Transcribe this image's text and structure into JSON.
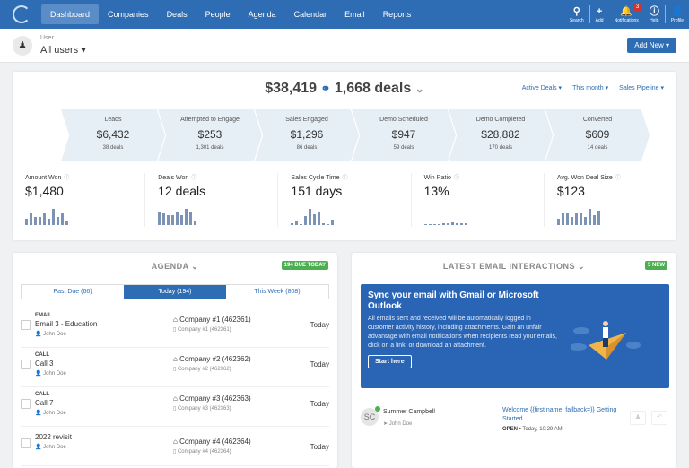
{
  "nav": {
    "items": [
      "Dashboard",
      "Companies",
      "Deals",
      "People",
      "Agenda",
      "Calendar",
      "Email",
      "Reports"
    ],
    "active": "Dashboard",
    "right": [
      {
        "label": "Search",
        "icon": "search-icon"
      },
      {
        "label": "Add",
        "icon": "plus-icon"
      },
      {
        "label": "Notifications",
        "icon": "bell-icon",
        "badge": "3"
      },
      {
        "label": "Help",
        "icon": "info-icon"
      },
      {
        "label": "Profile",
        "icon": "user-icon"
      }
    ]
  },
  "user": {
    "label": "User",
    "value": "All users ▾"
  },
  "add_new": "Add New ▾",
  "summary": {
    "amount": "$38,419",
    "deals": "1,668 deals",
    "filters": [
      "Active Deals ▾",
      "This month ▾",
      "Sales Pipeline ▾"
    ]
  },
  "funnel": [
    {
      "name": "Leads",
      "value": "$6,432",
      "deals": "38 deals"
    },
    {
      "name": "Attempted to Engage",
      "value": "$253",
      "deals": "1,301 deals"
    },
    {
      "name": "Sales Engaged",
      "value": "$1,296",
      "deals": "86 deals"
    },
    {
      "name": "Demo Scheduled",
      "value": "$947",
      "deals": "59 deals"
    },
    {
      "name": "Demo Completed",
      "value": "$28,882",
      "deals": "170 deals"
    },
    {
      "name": "Converted",
      "value": "$609",
      "deals": "14 deals"
    }
  ],
  "metrics": [
    {
      "name": "Amount Won",
      "value": "$1,480",
      "spark": [
        4,
        7,
        5,
        5,
        7,
        4,
        10,
        5,
        7,
        2
      ]
    },
    {
      "name": "Deals Won",
      "value": "12 deals",
      "spark": [
        8,
        7,
        6,
        6,
        8,
        6,
        10,
        8,
        2
      ]
    },
    {
      "name": "Sales Cycle Time",
      "value": "151 days",
      "spark": [
        1,
        2,
        0,
        5,
        9,
        6,
        7,
        1,
        0,
        3
      ]
    },
    {
      "name": "Win Ratio",
      "value": "13%",
      "spark": [
        0.3,
        0.3,
        0.3,
        0.3,
        0.5,
        0.5,
        0.6,
        0.5,
        0.5,
        0.4
      ]
    },
    {
      "name": "Avg. Won Deal Size",
      "value": "$123",
      "spark": [
        4,
        7,
        7,
        5,
        7,
        7,
        5,
        10,
        6,
        9
      ]
    }
  ],
  "agenda": {
    "title": "AGENDA ⌄",
    "badge": "194 DUE TODAY",
    "tabs": [
      "Past Due (66)",
      "Today (194)",
      "This Week (808)"
    ],
    "active_tab": 1,
    "rows": [
      {
        "type": "EMAIL",
        "title": "Email 3 - Education",
        "owner": "John Doe",
        "company": "Company #1 (462361)",
        "company_sub": "Company #1 (462361)",
        "when": "Today"
      },
      {
        "type": "CALL",
        "title": "Call 3",
        "owner": "John Doe",
        "company": "Company #2 (462362)",
        "company_sub": "Company #2 (462362)",
        "when": "Today"
      },
      {
        "type": "CALL",
        "title": "Call 7",
        "owner": "John Doe",
        "company": "Company #3 (462363)",
        "company_sub": "Company #3 (462363)",
        "when": "Today"
      },
      {
        "type": "",
        "title": "2022 revisit",
        "owner": "John Doe",
        "company": "Company #4 (462364)",
        "company_sub": "Company #4 (462364)",
        "when": "Today"
      }
    ]
  },
  "email": {
    "title": "LATEST EMAIL INTERACTIONS ⌄",
    "badge": "5 NEW",
    "sync": {
      "heading": "Sync your email with Gmail or Microsoft Outlook",
      "body": "All emails sent and received will be automatically logged in customer activity history, including attachments. Gain an unfair advantage with email notifications when recipients read your emails, click on a link, or download an attachment.",
      "button": "Start here"
    },
    "item": {
      "initials": "SC",
      "name": "Summer Campbell",
      "owner": "John Doe",
      "subject": "Welcome {{first name, fallback=}} Getting Started",
      "status": "OPEN",
      "time": "• Today, 10:29 AM"
    }
  },
  "colors": {
    "primary": "#2e6db4",
    "success": "#4caf50",
    "badge": "#d9302c"
  }
}
